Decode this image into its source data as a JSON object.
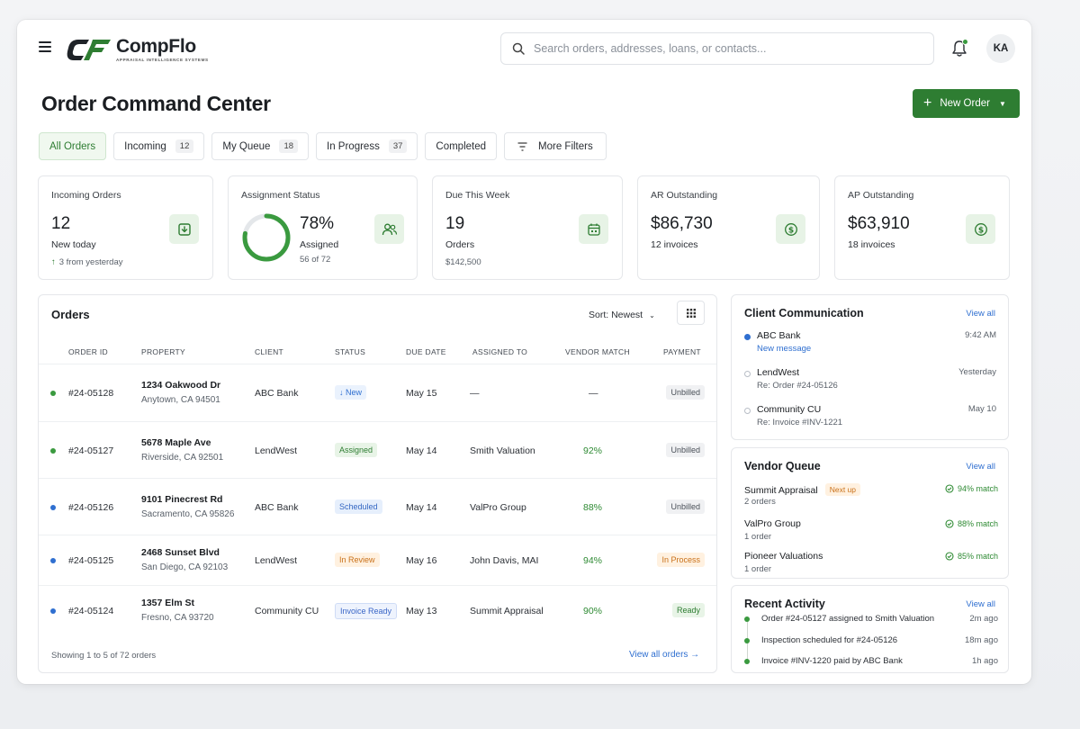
{
  "header": {
    "brand": "CompFlo",
    "tagline": "APPRAISAL INTELLIGENCE SYSTEMS",
    "search_placeholder": "Search orders, addresses, loans, or contacts...",
    "avatar": "KA"
  },
  "page": {
    "title": "Order Command Center",
    "new_order_label": "New Order"
  },
  "filters": [
    {
      "label": "All Orders",
      "count": ""
    },
    {
      "label": "Incoming",
      "count": "12"
    },
    {
      "label": "My Queue",
      "count": "18"
    },
    {
      "label": "In Progress",
      "count": "37"
    },
    {
      "label": "Completed",
      "count": ""
    },
    {
      "label": "More Filters",
      "count": ""
    }
  ],
  "kpis": {
    "incoming": {
      "title": "Incoming Orders",
      "value": "12",
      "sub": "New today",
      "foot": "3 from yesterday"
    },
    "assignment": {
      "title": "Assignment Status",
      "value": "78%",
      "sub": "Assigned",
      "foot": "56 of 72",
      "progress": 0.78
    },
    "due": {
      "title": "Due This Week",
      "value": "19",
      "sub": "Orders",
      "foot": "$142,500"
    },
    "ar": {
      "title": "AR Outstanding",
      "value": "$86,730",
      "sub": "12 invoices"
    },
    "ap": {
      "title": "AP Outstanding",
      "value": "$63,910",
      "sub": "18 invoices"
    }
  },
  "orders": {
    "title": "Orders",
    "sort_label": "Sort: Newest",
    "columns": [
      "ORDER ID",
      "PROPERTY",
      "CLIENT",
      "STATUS",
      "DUE DATE",
      "ASSIGNED TO",
      "VENDOR MATCH",
      "PAYMENT"
    ],
    "rows": [
      {
        "id": "#24-05128",
        "addr1": "1234 Oakwood Dr",
        "addr2": "Anytown, CA 94501",
        "client": "ABC Bank",
        "status": "↓ New",
        "status_kind": "new",
        "due": "May 15",
        "assigned": "—",
        "match": "—",
        "payment": "Unbilled",
        "payment_kind": "unbilled",
        "dot": "#3a9a3f"
      },
      {
        "id": "#24-05127",
        "addr1": "5678 Maple Ave",
        "addr2": "Riverside, CA 92501",
        "client": "LendWest",
        "status": "Assigned",
        "status_kind": "assigned",
        "due": "May 14",
        "assigned": "Smith Valuation",
        "match": "92%",
        "payment": "Unbilled",
        "payment_kind": "unbilled",
        "dot": "#3a9a3f"
      },
      {
        "id": "#24-05126",
        "addr1": "9101 Pinecrest Rd",
        "addr2": "Sacramento, CA 95826",
        "client": "ABC Bank",
        "status": "Scheduled",
        "status_kind": "scheduled",
        "due": "May 14",
        "assigned": "ValPro Group",
        "match": "88%",
        "payment": "Unbilled",
        "payment_kind": "unbilled",
        "dot": "#2f6fd0"
      },
      {
        "id": "#24-05125",
        "addr1": "2468 Sunset Blvd",
        "addr2": "San Diego, CA 92103",
        "client": "LendWest",
        "status": "In Review",
        "status_kind": "review",
        "due": "May 16",
        "assigned": "John Davis, MAI",
        "match": "94%",
        "payment": "In Process",
        "payment_kind": "process",
        "dot": "#2f6fd0"
      },
      {
        "id": "#24-05124",
        "addr1": "1357 Elm St",
        "addr2": "Fresno, CA 93720",
        "client": "Community CU",
        "status": "Invoice Ready",
        "status_kind": "invoice",
        "due": "May 13",
        "assigned": "Summit Appraisal",
        "match": "90%",
        "payment": "Ready",
        "payment_kind": "ready",
        "dot": "#2f6fd0"
      }
    ],
    "showing": "Showing 1 to 5 of 72 orders",
    "view_all": "View all orders →"
  },
  "client_comm": {
    "title": "Client Communication",
    "view_all": "View all",
    "items": [
      {
        "name": "ABC Bank",
        "sub": "New message",
        "time": "9:42 AM",
        "unread": true
      },
      {
        "name": "LendWest",
        "sub": "Re: Order #24-05126",
        "time": "Yesterday",
        "unread": false
      },
      {
        "name": "Community CU",
        "sub": "Re: Invoice #INV-1221",
        "time": "May 10",
        "unread": false
      }
    ]
  },
  "vendor_queue": {
    "title": "Vendor Queue",
    "view_all": "View all",
    "next_up": "Next up",
    "items": [
      {
        "name": "Summit Appraisal",
        "sub": "2 orders",
        "match": "94% match"
      },
      {
        "name": "ValPro Group",
        "sub": "1 order",
        "match": "88% match"
      },
      {
        "name": "Pioneer Valuations",
        "sub": "1 order",
        "match": "85% match"
      }
    ]
  },
  "recent_activity": {
    "title": "Recent Activity",
    "view_all": "View all",
    "items": [
      {
        "text": "Order #24-05127 assigned to Smith Valuation",
        "time": "2m ago"
      },
      {
        "text": "Inspection scheduled for #24-05126",
        "time": "18m ago"
      },
      {
        "text": "Invoice #INV-1220 paid by ABC Bank",
        "time": "1h ago"
      }
    ]
  },
  "colors": {
    "accent": "#2e7d32",
    "link": "#2f6fd0",
    "warn": "#c9711a"
  }
}
